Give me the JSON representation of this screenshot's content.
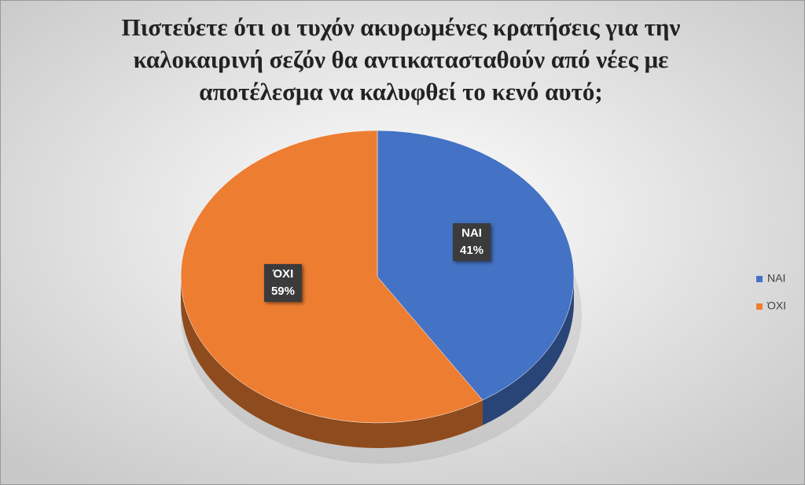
{
  "chart_data": {
    "type": "pie",
    "title": "Πιστεύετε ότι οι τυχόν ακυρωμένες κρατήσεις για την καλοκαιρινή σεζόν θα αντικατασταθούν από νέες με αποτέλεσμα να καλυφθεί το κενό αυτό;",
    "categories": [
      "ΝΑΙ",
      "ΌΧΙ"
    ],
    "values": [
      41,
      59
    ],
    "value_labels": [
      "41%",
      "59%"
    ],
    "colors": [
      "#4472c4",
      "#ed7d31"
    ],
    "legend": "right"
  }
}
